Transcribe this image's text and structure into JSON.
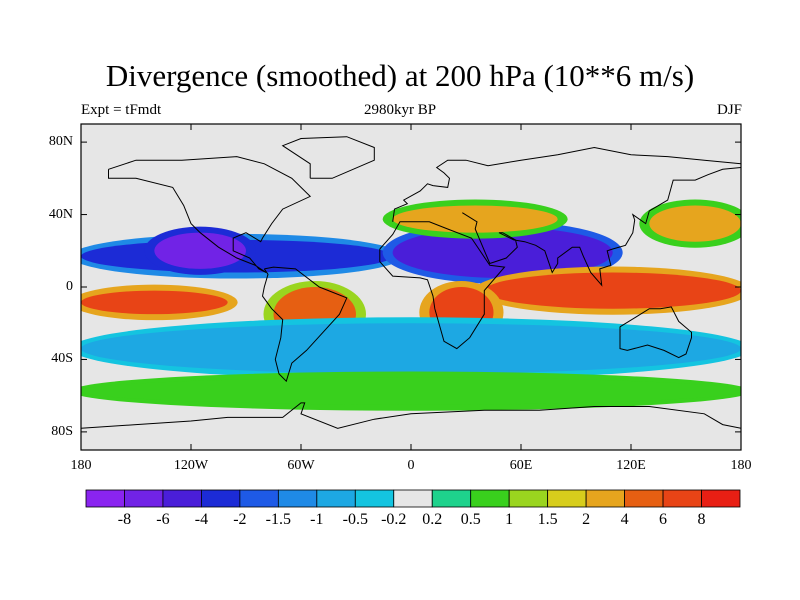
{
  "chart_data": {
    "type": "heatmap",
    "title": "Divergence (smoothed) at 200 hPa (10**6 m/s)",
    "left_string": "Expt = tFmdt",
    "center_string": "2980kyr BP",
    "right_string": "DJF",
    "y_ticks": [
      "80N",
      "40N",
      "0",
      "40S",
      "80S"
    ],
    "y_tick_values": [
      80,
      40,
      0,
      -40,
      -80
    ],
    "x_ticks": [
      "180",
      "120W",
      "60W",
      "0",
      "60E",
      "120E",
      "180"
    ],
    "x_tick_values": [
      -180,
      -120,
      -60,
      0,
      60,
      120,
      180
    ],
    "lon_range": [
      -180,
      180
    ],
    "lat_range": [
      -90,
      90
    ],
    "colorbar": {
      "labels": [
        "-8",
        "-6",
        "-4",
        "-2",
        "-1.5",
        "-1",
        "-0.5",
        "-0.2",
        "0.2",
        "0.5",
        "1",
        "1.5",
        "2",
        "4",
        "6",
        "8"
      ],
      "colors": [
        "#8a24f0",
        "#7123e6",
        "#4a1ed9",
        "#1c2bd6",
        "#1e5ae6",
        "#1f8ae6",
        "#1da8e3",
        "#14c4e0",
        "#e6e6e6",
        "#1ed28c",
        "#39d01d",
        "#9ad51f",
        "#d7cd1c",
        "#e6a51e",
        "#e65f12",
        "#e84416",
        "#e81f14"
      ]
    },
    "fields": [
      {
        "desc": "tropical Pacific / Atlantic upper-level convergence band",
        "lon": [
          -180,
          -10
        ],
        "lat": [
          8,
          26
        ],
        "value": -4
      },
      {
        "desc": "tropical Africa / Indian Ocean convergence",
        "lon": [
          -10,
          110
        ],
        "lat": [
          5,
          33
        ],
        "value": -6
      },
      {
        "desc": "subtropical Pacific convergence",
        "lon": [
          -140,
          -90
        ],
        "lat": [
          10,
          30
        ],
        "value": -8
      },
      {
        "desc": "ITCZ Indo-Pacific divergence band",
        "lon": [
          40,
          180
        ],
        "lat": [
          -12,
          8
        ],
        "value": 6
      },
      {
        "desc": "eastern Pacific divergence",
        "lon": [
          -180,
          -100
        ],
        "lat": [
          -15,
          -2
        ],
        "value": 6
      },
      {
        "desc": "South America divergence",
        "lon": [
          -75,
          -30
        ],
        "lat": [
          -30,
          0
        ],
        "value": 4
      },
      {
        "desc": "southern Africa divergence",
        "lon": [
          10,
          45
        ],
        "lat": [
          -28,
          0
        ],
        "value": 6
      },
      {
        "desc": "North Pacific jet divergence",
        "lon": [
          130,
          180
        ],
        "lat": [
          25,
          45
        ],
        "value": 2
      },
      {
        "desc": "North Atlantic / Europe divergence",
        "lon": [
          -10,
          80
        ],
        "lat": [
          30,
          45
        ],
        "value": 2
      },
      {
        "desc": "southern subtropics convergence",
        "lon": [
          -180,
          180
        ],
        "lat": [
          -48,
          -20
        ],
        "value": -1
      },
      {
        "desc": "Southern Ocean divergence band",
        "lon": [
          -180,
          180
        ],
        "lat": [
          -65,
          -50
        ],
        "value": 0.5
      }
    ]
  }
}
